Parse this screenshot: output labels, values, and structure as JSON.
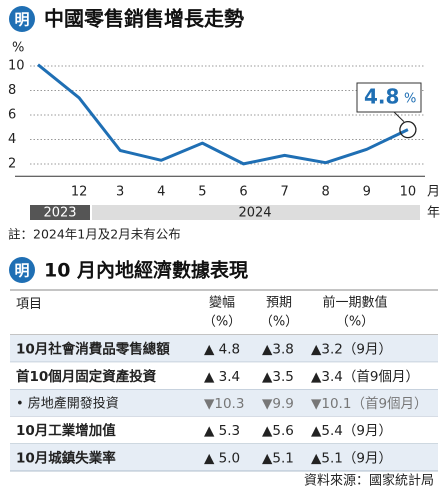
{
  "logo": "明",
  "header": {
    "title": "中國零售銷售增長走勢"
  },
  "chart_data": {
    "type": "line",
    "y_label": "%",
    "categories": [
      null,
      "12",
      "3",
      "4",
      "5",
      "6",
      "7",
      "8",
      "9",
      "10"
    ],
    "x_unit": "月",
    "years": [
      "2023",
      "2024"
    ],
    "year_unit": "年",
    "series": [
      {
        "name": "零售銷售增長",
        "color": "#1f6fb4",
        "values": [
          10.1,
          7.4,
          3.1,
          2.3,
          3.7,
          2.0,
          2.7,
          2.1,
          3.2,
          4.8
        ]
      }
    ],
    "ylim": [
      1,
      10.6
    ],
    "yticks": [
      2,
      4,
      6,
      8,
      10
    ],
    "grid": true,
    "annotation": {
      "text": "4.8",
      "unit": "%"
    },
    "note": "註：2024年1月及2月未有公布"
  },
  "table": {
    "title": "10 月內地經濟數據表現",
    "columns": [
      {
        "label": "項目"
      },
      {
        "label": "變幅",
        "unit": "（%）"
      },
      {
        "label": "預期",
        "unit": "（%）"
      },
      {
        "label": "前一期數值",
        "unit": "（%）"
      }
    ],
    "rows": [
      [
        "10月社會消費品零售總額",
        "▲ 4.8",
        "▲3.8",
        "▲3.2（9月）"
      ],
      [
        "首10個月固定資產投資",
        "▲ 3.4",
        "▲3.5",
        "▲3.4（首9個月）"
      ],
      [
        "• 房地產開發投資",
        "▼10.3",
        "▼9.9",
        "▼10.1（首9個月）"
      ],
      [
        "10月工業增加值",
        "▲ 5.3",
        "▲5.6",
        "▲5.4（9月）"
      ],
      [
        "10月城鎮失業率",
        "▲ 5.0",
        "▲5.1",
        "▲5.1（9月）"
      ]
    ],
    "source": "資料來源：國家統計局"
  }
}
